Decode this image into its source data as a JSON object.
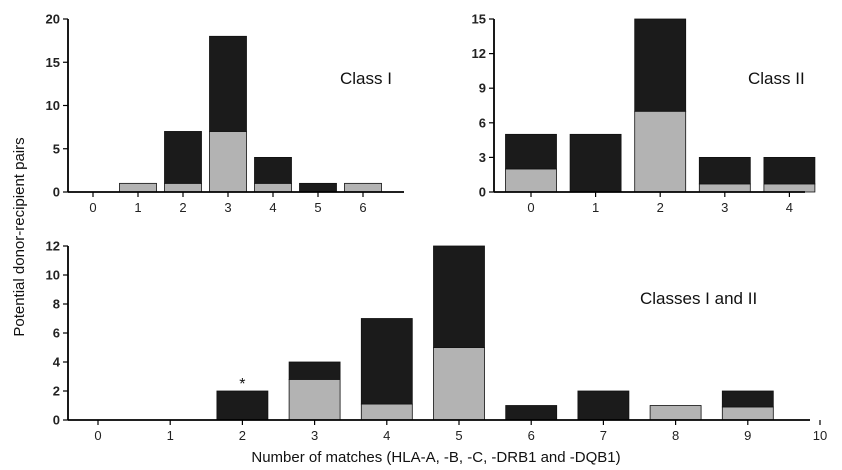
{
  "shared": {
    "ylabel": "Potential donor-recipient pairs",
    "xlabel": "Number of matches (HLA-A, -B, -C, -DRB1 and -DQB1)",
    "colors": {
      "total": "#1b1b1b",
      "subset": "#b3b3b3",
      "axis": "#000000"
    }
  },
  "chart_data": [
    {
      "type": "bar",
      "stacked": true,
      "title": "Class I",
      "categories": [
        "0",
        "1",
        "2",
        "3",
        "4",
        "5",
        "6"
      ],
      "series": [
        {
          "values": [
            0,
            1,
            1,
            7,
            1,
            0,
            1
          ]
        },
        {
          "values": [
            0,
            0,
            6,
            11,
            3,
            1,
            0
          ]
        }
      ],
      "ylim": [
        0,
        20
      ],
      "yticks": [
        0,
        5,
        10,
        15,
        20
      ]
    },
    {
      "type": "bar",
      "stacked": true,
      "title": "Class II",
      "categories": [
        "0",
        "1",
        "2",
        "3",
        "4"
      ],
      "series": [
        {
          "values": [
            2,
            0,
            7,
            0.7,
            0.7
          ]
        },
        {
          "values": [
            3,
            5,
            8,
            2.3,
            2.3
          ]
        }
      ],
      "ylim": [
        0,
        15
      ],
      "yticks": [
        0,
        3,
        6,
        9,
        12,
        15
      ]
    },
    {
      "type": "bar",
      "stacked": true,
      "title": "Classes I and II",
      "categories": [
        "0",
        "1",
        "2",
        "3",
        "4",
        "5",
        "6",
        "7",
        "8",
        "9",
        "10"
      ],
      "series": [
        {
          "values": [
            0,
            0,
            0,
            2.8,
            1.1,
            5,
            0,
            0,
            1,
            0.9,
            0
          ]
        },
        {
          "values": [
            0,
            0,
            2,
            1.2,
            5.9,
            7,
            1,
            2,
            0,
            1.1,
            0
          ]
        }
      ],
      "ylim": [
        0,
        12
      ],
      "yticks": [
        0,
        2,
        4,
        6,
        8,
        10,
        12
      ],
      "annotations": [
        {
          "category": "2",
          "text": "*"
        }
      ]
    }
  ]
}
